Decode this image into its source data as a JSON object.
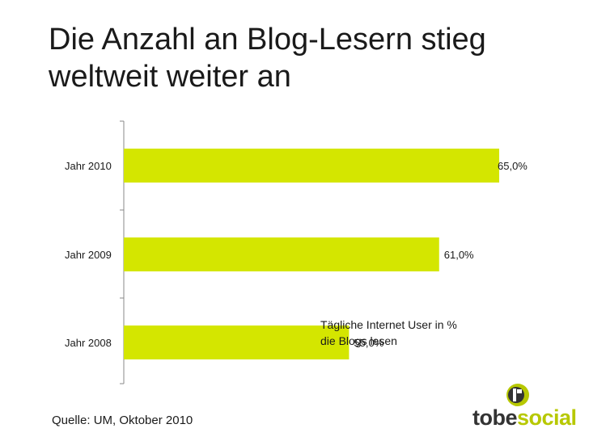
{
  "title": "Die Anzahl an Blog-Lesern stieg\nweltweit weiter an",
  "source": "Quelle: UM, Oktober 2010",
  "logo": {
    "part1": "tobe",
    "part2": "social",
    "icon": "tobesocial-logo-icon"
  },
  "colors": {
    "bar": "#d4e600",
    "text": "#1a1a1a",
    "axis": "#888888",
    "logo_green": "#b7c800"
  },
  "chart_data": {
    "type": "bar",
    "orientation": "horizontal",
    "categories": [
      "Jahr 2010",
      "Jahr 2009",
      "Jahr 2008"
    ],
    "values": [
      65.0,
      61.0,
      55.0
    ],
    "value_labels": [
      "65,0%",
      "61,0%",
      "55,0%"
    ],
    "annotation": "Tägliche Internet User in %\ndie Blogs lesen",
    "xlim": [
      40,
      65
    ],
    "grid": false,
    "legend": "none"
  }
}
